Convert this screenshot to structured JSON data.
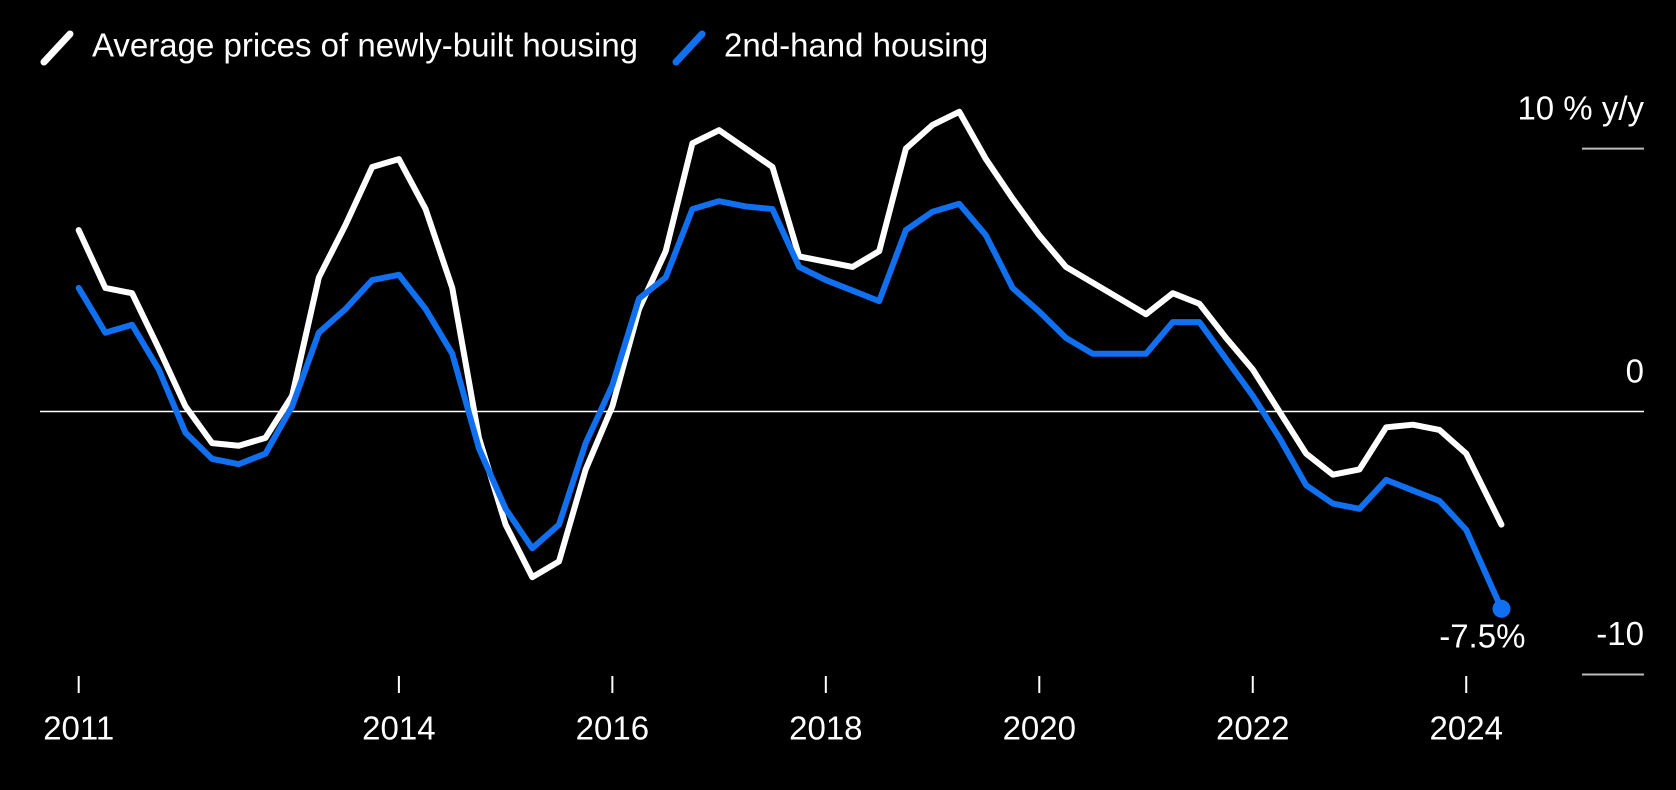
{
  "chart_data": {
    "type": "line",
    "x": [
      2011,
      2011.25,
      2011.5,
      2011.75,
      2012,
      2012.25,
      2012.5,
      2012.75,
      2013,
      2013.25,
      2013.5,
      2013.75,
      2014,
      2014.25,
      2014.5,
      2014.75,
      2015,
      2015.25,
      2015.5,
      2015.75,
      2016,
      2016.25,
      2016.5,
      2016.75,
      2017,
      2017.25,
      2017.5,
      2017.75,
      2018,
      2018.25,
      2018.5,
      2018.75,
      2019,
      2019.25,
      2019.5,
      2019.75,
      2020,
      2020.25,
      2020.5,
      2020.75,
      2021,
      2021.25,
      2021.5,
      2021.75,
      2022,
      2022.25,
      2022.5,
      2022.75,
      2023,
      2023.25,
      2023.5,
      2023.75,
      2024,
      2024.33
    ],
    "series": [
      {
        "name": "Average prices of newly-built housing",
        "color": "#ffffff",
        "values": [
          6.9,
          4.7,
          4.5,
          2.4,
          0.2,
          -1.2,
          -1.3,
          -1.0,
          0.6,
          5.1,
          7.1,
          9.3,
          9.6,
          7.7,
          4.7,
          -1.0,
          -4.3,
          -6.3,
          -5.7,
          -2.2,
          0.2,
          3.9,
          6.1,
          10.2,
          10.7,
          10.0,
          9.3,
          5.9,
          5.7,
          5.5,
          6.1,
          10.0,
          10.9,
          11.4,
          9.6,
          8.1,
          6.7,
          5.5,
          4.9,
          4.3,
          3.7,
          4.5,
          4.1,
          2.8,
          1.6,
          0,
          -1.6,
          -2.4,
          -2.2,
          -0.6,
          -0.5,
          -0.7,
          -1.6,
          -4.3
        ]
      },
      {
        "name": "2nd-hand housing",
        "color": "#1070f0",
        "end_label": "-7.5%",
        "values": [
          4.7,
          3.0,
          3.3,
          1.6,
          -0.8,
          -1.8,
          -2.0,
          -1.6,
          0.2,
          3.0,
          3.9,
          5.0,
          5.2,
          3.9,
          2.2,
          -1.4,
          -3.7,
          -5.2,
          -4.3,
          -1.2,
          1.0,
          4.3,
          5.1,
          7.7,
          8.0,
          7.8,
          7.7,
          5.5,
          5.0,
          4.6,
          4.2,
          6.9,
          7.6,
          7.9,
          6.7,
          4.7,
          3.8,
          2.8,
          2.2,
          2.2,
          2.2,
          3.4,
          3.4,
          2.0,
          0.6,
          -1.0,
          -2.8,
          -3.5,
          -3.7,
          -2.6,
          -3.0,
          -3.4,
          -4.5,
          -7.5
        ]
      }
    ],
    "xlim": [
      2010.6,
      2025.6
    ],
    "xticks": [
      2011,
      2014,
      2016,
      2018,
      2020,
      2022,
      2024
    ],
    "ylim": [
      -10,
      12
    ],
    "yticks": [
      {
        "value": 10,
        "label": "10 % y/y"
      },
      0,
      -10
    ]
  }
}
